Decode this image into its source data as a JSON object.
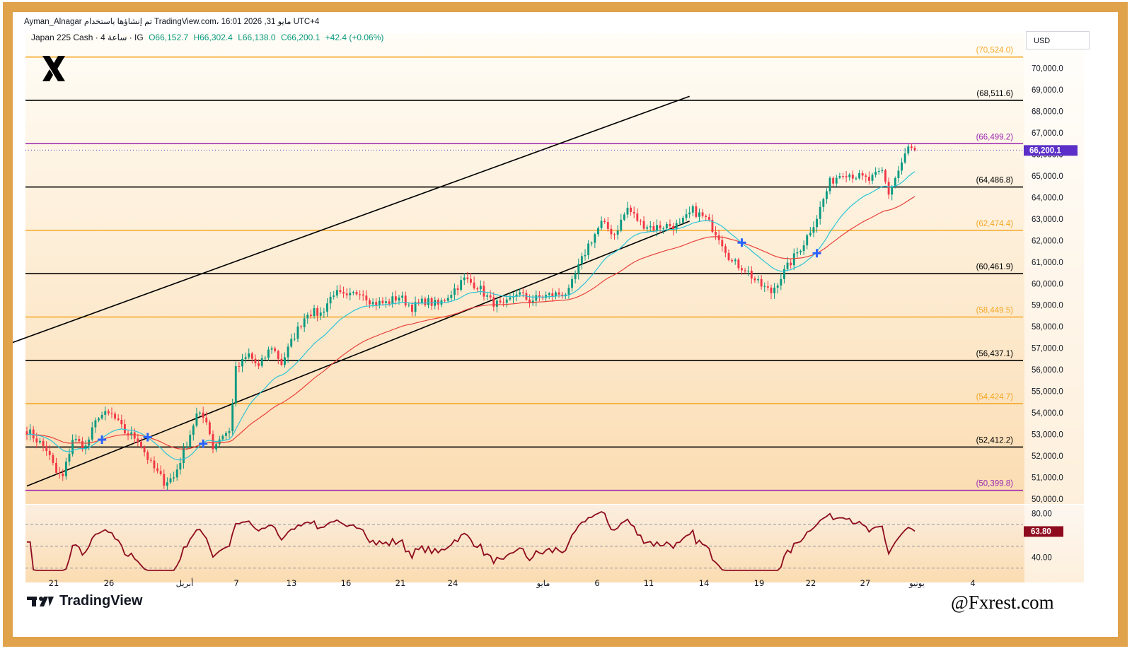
{
  "header": {
    "author": "Ayman_Alnagar",
    "attribution": "تم إنشاؤها باستخدام TradingView.com، 16:01 2026 ,31 مايو UTC+4",
    "symbol_line": "Japan 225 Cash · 4 ساعة · IG",
    "open": "O66,152.7",
    "high": "H66,302.4",
    "low": "L66,138.0",
    "close": "C66,200.1",
    "change": "+42.4 (+0.06%)"
  },
  "currency": "USD",
  "branding": {
    "tradingview": "TradingView",
    "watermark": "@Fxrest.com",
    "logo_icon": "x-logo-icon",
    "tv_icon": "tradingview-logo-icon"
  },
  "colors": {
    "frame": "#e0a24a",
    "bg_top": "#fffdf7",
    "bg_bottom": "#fbdcb1",
    "candle_up": "#089981",
    "candle_down": "#f23645",
    "ema_fast": "#2ec4d6",
    "ema_slow": "#e8413b",
    "rsi": "#8e0b1e",
    "level_orange": "#f5a623",
    "level_purple": "#9c27b0",
    "level_black": "#000000",
    "price_label_bg": "#5b2fc8",
    "rsi_label_bg": "#8e0b1e",
    "signal_marker": "#2962ff"
  },
  "chart_data": {
    "type": "candlestick",
    "instrument": "Japan 225 Cash",
    "timeframe": "4h",
    "ylim": [
      49800,
      71300
    ],
    "y_ticks": [
      "70,000.0",
      "69,000.0",
      "68,000.0",
      "67,000.0",
      "66,000.0",
      "65,000.0",
      "64,000.0",
      "63,000.0",
      "62,000.0",
      "61,000.0",
      "60,000.0",
      "59,000.0",
      "58,000.0",
      "57,000.0",
      "56,000.0",
      "55,000.0",
      "54,000.0",
      "53,000.0",
      "52,000.0",
      "51,000.0",
      "50,000.0"
    ],
    "x_ticks": [
      "21",
      "26",
      "أبريل",
      "7",
      "13",
      "16",
      "21",
      "24",
      "مايو",
      "6",
      "11",
      "14",
      "19",
      "22",
      "27",
      "يونيو",
      "4"
    ],
    "levels": [
      {
        "value": 70524.0,
        "label": "(70,524.0)",
        "color": "orange"
      },
      {
        "value": 68511.6,
        "label": "(68,511.6)",
        "color": "black"
      },
      {
        "value": 66499.2,
        "label": "(66,499.2)",
        "color": "purple"
      },
      {
        "value": 64486.8,
        "label": "(64,486.8)",
        "color": "black"
      },
      {
        "value": 62474.4,
        "label": "(62,474.4)",
        "color": "orange"
      },
      {
        "value": 60461.9,
        "label": "(60,461.9)",
        "color": "black"
      },
      {
        "value": 58449.5,
        "label": "(58,449.5)",
        "color": "orange"
      },
      {
        "value": 56437.1,
        "label": "(56,437.1)",
        "color": "black"
      },
      {
        "value": 54424.7,
        "label": "(54,424.7)",
        "color": "orange"
      },
      {
        "value": 52412.2,
        "label": "(52,412.2)",
        "color": "black"
      },
      {
        "value": 50399.8,
        "label": "(50,399.8)",
        "color": "purple"
      }
    ],
    "last_price": 66200.1,
    "last_price_label": "66,200.1",
    "close_path_anchors": [
      [
        0,
        53200
      ],
      [
        6,
        52300
      ],
      [
        9,
        51200
      ],
      [
        11,
        51000
      ],
      [
        14,
        52800
      ],
      [
        18,
        52400
      ],
      [
        22,
        53900
      ],
      [
        26,
        53900
      ],
      [
        30,
        53100
      ],
      [
        34,
        52800
      ],
      [
        38,
        51600
      ],
      [
        42,
        50800
      ],
      [
        45,
        51000
      ],
      [
        49,
        52600
      ],
      [
        52,
        53900
      ],
      [
        55,
        53700
      ],
      [
        57,
        52400
      ],
      [
        60,
        53000
      ],
      [
        62,
        53100
      ],
      [
        64,
        56000
      ],
      [
        68,
        56700
      ],
      [
        71,
        56100
      ],
      [
        75,
        57100
      ],
      [
        78,
        56300
      ],
      [
        82,
        57600
      ],
      [
        86,
        58700
      ],
      [
        90,
        58600
      ],
      [
        94,
        59600
      ],
      [
        98,
        59300
      ],
      [
        102,
        59700
      ],
      [
        106,
        59100
      ],
      [
        110,
        59100
      ],
      [
        114,
        59400
      ],
      [
        118,
        58900
      ],
      [
        122,
        59200
      ],
      [
        126,
        59000
      ],
      [
        130,
        59600
      ],
      [
        134,
        60200
      ],
      [
        138,
        59900
      ],
      [
        142,
        59200
      ],
      [
        146,
        58900
      ],
      [
        150,
        59600
      ],
      [
        154,
        59200
      ],
      [
        158,
        59400
      ],
      [
        162,
        59500
      ],
      [
        166,
        59600
      ],
      [
        168,
        60400
      ],
      [
        172,
        61800
      ],
      [
        176,
        62800
      ],
      [
        180,
        62300
      ],
      [
        184,
        63500
      ],
      [
        188,
        62800
      ],
      [
        192,
        62600
      ],
      [
        196,
        62700
      ],
      [
        200,
        62700
      ],
      [
        204,
        63400
      ],
      [
        208,
        63000
      ],
      [
        212,
        62200
      ],
      [
        216,
        61000
      ],
      [
        220,
        60700
      ],
      [
        224,
        60000
      ],
      [
        228,
        59600
      ],
      [
        230,
        60100
      ],
      [
        234,
        61000
      ],
      [
        238,
        61900
      ],
      [
        242,
        63100
      ],
      [
        246,
        64700
      ],
      [
        250,
        65200
      ],
      [
        254,
        65000
      ],
      [
        258,
        64800
      ],
      [
        262,
        65200
      ],
      [
        264,
        64200
      ],
      [
        266,
        64900
      ],
      [
        270,
        66300
      ],
      [
        272,
        66200
      ]
    ],
    "ema_fast_period": 20,
    "ema_slow_period": 50,
    "channel": {
      "lower": [
        [
          0,
          50600
        ],
        [
          203,
          62900
        ]
      ],
      "upper": [
        [
          -40,
          55300
        ],
        [
          203,
          68700
        ]
      ]
    },
    "rsi": {
      "label": "63.80",
      "value": 63.8,
      "y_ticks": [
        "80.00",
        "40.00"
      ],
      "bands": [
        70,
        50,
        30
      ]
    }
  }
}
